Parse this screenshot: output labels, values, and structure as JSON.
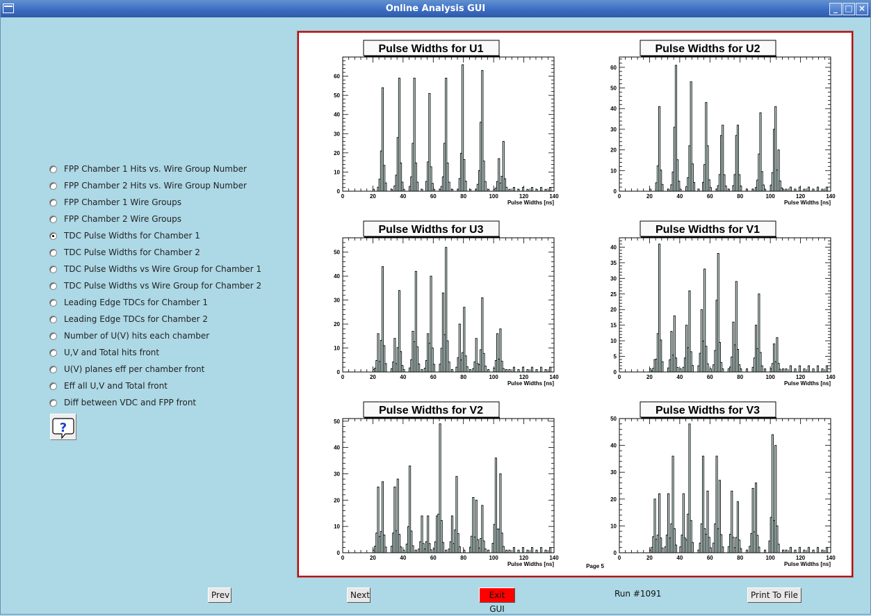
{
  "window": {
    "title": "Online Analysis GUI"
  },
  "options": [
    {
      "label": "FPP Chamber 1 Hits vs. Wire Group Number",
      "selected": false
    },
    {
      "label": "FPP Chamber 2 Hits vs. Wire Group Number",
      "selected": false
    },
    {
      "label": "FPP Chamber 1 Wire Groups",
      "selected": false
    },
    {
      "label": "FPP Chamber 2 Wire Groups",
      "selected": false
    },
    {
      "label": "TDC Pulse Widths for Chamber 1",
      "selected": true
    },
    {
      "label": "TDC Pulse Widths for Chamber 2",
      "selected": false
    },
    {
      "label": "TDC Pulse Widths vs Wire Group for Chamber 1",
      "selected": false
    },
    {
      "label": "TDC Pulse Widths vs Wire Group for Chamber 2",
      "selected": false
    },
    {
      "label": "Leading Edge TDCs for Chamber 1",
      "selected": false
    },
    {
      "label": "Leading Edge TDCs for Chamber 2",
      "selected": false
    },
    {
      "label": "Number of U(V) hits each chamber",
      "selected": false
    },
    {
      "label": "U,V and Total hits front",
      "selected": false
    },
    {
      "label": "U(V) planes eff per chamber front",
      "selected": false
    },
    {
      "label": "Eff all U,V and Total front",
      "selected": false
    },
    {
      "label": "Diff between VDC and FPP front",
      "selected": false
    }
  ],
  "page_label": "Page 5",
  "buttons": {
    "prev": "Prev",
    "next": "Next",
    "exit": "Exit GUI",
    "print": "Print To File"
  },
  "run_label": "Run #1091",
  "colors": {
    "background": "#add8e6",
    "canvas_border": "#cc0000",
    "exit_button": "#ff0000",
    "hist_fill": "#d8f0ec"
  },
  "chart_data": [
    {
      "type": "bar",
      "title": "Pulse Widths for U1",
      "xlabel": "Pulse Widths [ns]",
      "xlim": [
        0,
        140
      ],
      "ylim": [
        0,
        70
      ],
      "xticks": [
        0,
        20,
        40,
        60,
        80,
        100,
        120,
        140
      ],
      "yticks": [
        0,
        10,
        20,
        30,
        40,
        50,
        60
      ],
      "peaks": [
        [
          25,
          21
        ],
        [
          26,
          54
        ],
        [
          36,
          28
        ],
        [
          37,
          59
        ],
        [
          46,
          25
        ],
        [
          47,
          59
        ],
        [
          57,
          51
        ],
        [
          67,
          25
        ],
        [
          68,
          59
        ],
        [
          79,
          66
        ],
        [
          91,
          36
        ],
        [
          92,
          63
        ],
        [
          103,
          17
        ],
        [
          106,
          26
        ]
      ]
    },
    {
      "type": "bar",
      "title": "Pulse Widths for U2",
      "xlabel": "Pulse Widths [ns]",
      "xlim": [
        0,
        140
      ],
      "ylim": [
        0,
        65
      ],
      "xticks": [
        0,
        20,
        40,
        60,
        80,
        100,
        120,
        140
      ],
      "yticks": [
        0,
        10,
        20,
        30,
        40,
        50,
        60
      ],
      "peaks": [
        [
          26,
          41
        ],
        [
          36,
          31
        ],
        [
          37,
          61
        ],
        [
          46,
          22
        ],
        [
          47,
          53
        ],
        [
          57,
          43
        ],
        [
          58,
          22
        ],
        [
          67,
          27
        ],
        [
          68,
          32
        ],
        [
          77,
          27
        ],
        [
          78,
          32
        ],
        [
          92,
          18
        ],
        [
          93,
          38
        ],
        [
          102,
          30
        ],
        [
          103,
          41
        ],
        [
          105,
          20
        ]
      ]
    },
    {
      "type": "bar",
      "title": "Pulse Widths for U3",
      "xlabel": "Pulse Widths [ns]",
      "xlim": [
        0,
        140
      ],
      "ylim": [
        0,
        56
      ],
      "xticks": [
        0,
        20,
        40,
        60,
        80,
        100,
        120,
        140
      ],
      "yticks": [
        0,
        10,
        20,
        30,
        40,
        50
      ],
      "peaks": [
        [
          23,
          16
        ],
        [
          26,
          44
        ],
        [
          34,
          14
        ],
        [
          37,
          34
        ],
        [
          46,
          17
        ],
        [
          48,
          42
        ],
        [
          56,
          16
        ],
        [
          58,
          40
        ],
        [
          66,
          33
        ],
        [
          68,
          52
        ],
        [
          77,
          20
        ],
        [
          80,
          27
        ],
        [
          88,
          14
        ],
        [
          92,
          31
        ],
        [
          102,
          16
        ],
        [
          104,
          18
        ]
      ]
    },
    {
      "type": "bar",
      "title": "Pulse Widths for V1",
      "xlabel": "Pulse Widths [ns]",
      "xlim": [
        0,
        140
      ],
      "ylim": [
        0,
        43
      ],
      "xticks": [
        0,
        20,
        40,
        60,
        80,
        100,
        120,
        140
      ],
      "yticks": [
        0,
        5,
        10,
        15,
        20,
        25,
        30,
        35,
        40
      ],
      "peaks": [
        [
          23,
          4
        ],
        [
          26,
          41
        ],
        [
          34,
          13
        ],
        [
          36,
          18
        ],
        [
          44,
          15
        ],
        [
          46,
          26
        ],
        [
          54,
          20
        ],
        [
          56,
          33
        ],
        [
          64,
          23
        ],
        [
          65,
          38
        ],
        [
          75,
          16
        ],
        [
          77,
          29
        ],
        [
          90,
          15
        ],
        [
          92,
          25
        ],
        [
          102,
          9
        ],
        [
          104,
          11
        ]
      ]
    },
    {
      "type": "bar",
      "title": "Pulse Widths for V2",
      "xlabel": "Pulse Widths [ns]",
      "xlim": [
        0,
        140
      ],
      "ylim": [
        0,
        51
      ],
      "xticks": [
        0,
        20,
        40,
        60,
        80,
        100,
        120,
        140
      ],
      "yticks": [
        0,
        10,
        20,
        30,
        40,
        50
      ],
      "peaks": [
        [
          23,
          25
        ],
        [
          26,
          27
        ],
        [
          34,
          25
        ],
        [
          36,
          28
        ],
        [
          44,
          33
        ],
        [
          52,
          14
        ],
        [
          56,
          14
        ],
        [
          62,
          14
        ],
        [
          64,
          49
        ],
        [
          72,
          14
        ],
        [
          75,
          29
        ],
        [
          86,
          21
        ],
        [
          88,
          20
        ],
        [
          92,
          18
        ],
        [
          101,
          36
        ],
        [
          104,
          30
        ]
      ]
    },
    {
      "type": "bar",
      "title": "Pulse Widths for V3",
      "xlabel": "Pulse Widths [ns]",
      "xlim": [
        0,
        140
      ],
      "ylim": [
        0,
        50
      ],
      "xticks": [
        0,
        20,
        40,
        60,
        80,
        100,
        120,
        140
      ],
      "yticks": [
        0,
        10,
        20,
        30,
        40,
        50
      ],
      "peaks": [
        [
          23,
          20
        ],
        [
          26,
          22
        ],
        [
          32,
          22
        ],
        [
          35,
          36
        ],
        [
          42,
          22
        ],
        [
          46,
          48
        ],
        [
          55,
          36
        ],
        [
          58,
          23
        ],
        [
          64,
          36
        ],
        [
          66,
          27
        ],
        [
          74,
          23
        ],
        [
          78,
          19
        ],
        [
          88,
          24
        ],
        [
          90,
          26
        ],
        [
          101,
          44
        ],
        [
          103,
          40
        ]
      ]
    }
  ]
}
